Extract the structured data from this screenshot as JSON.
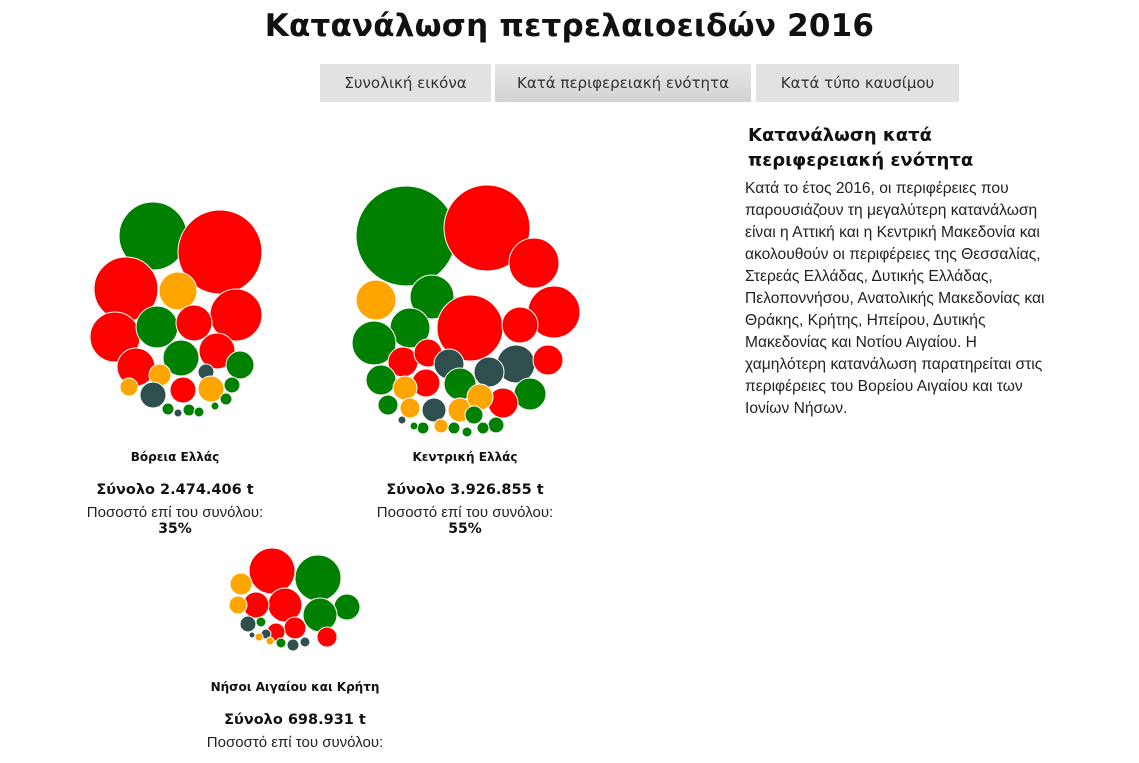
{
  "title": "Κατανάλωση πετρελαιοειδών 2016",
  "tabs": [
    {
      "label": "Συνολική εικόνα",
      "active": false
    },
    {
      "label": "Κατά περιφερειακή ενότητα",
      "active": true
    },
    {
      "label": "Κατά τύπο καυσίμου",
      "active": false
    }
  ],
  "panel": {
    "title": "Κατανάλωση κατά περιφερειακή ενότητα",
    "text": "Κατά το έτος 2016, οι περιφέρειες που παρουσιάζουν τη μεγαλύτερη κατανάλωση είναι η Αττική και η Κεντρική Μακεδονία και ακολουθούν οι περιφέρειες της Θεσσαλίας, Στερεάς Ελλάδας, Δυτικής Ελλάδας, Πελοποννήσου, Ανατολικής Μακεδονίας και Θράκης, Κρήτης, Ηπείρου, Δυτικής Μακεδονίας και Νοτίου Αιγαίου. Η χαμηλότερη κατανάλωση παρατηρείται στις περιφέρειες του Βορείου Αιγαίου και των Ιονίων Νήσων."
  },
  "colors": {
    "red": "#ff0000",
    "green": "#008000",
    "orange": "#ffa500",
    "slate": "#2f4f4f"
  },
  "chart_data": {
    "type": "bubble-cluster",
    "groups": [
      {
        "name": "Βόρεια Ελλάς",
        "total_label": "Σύνολο 2.474.406 t",
        "share_label": "Ποσοστό επί του συνόλου:",
        "share_value": "35%"
      },
      {
        "name": "Κεντρική Ελλάς",
        "total_label": "Σύνολο 3.926.855 t",
        "share_label": "Ποσοστό επί του συνόλου:",
        "share_value": "55%"
      },
      {
        "name": "Νήσοι Αιγαίου και Κρήτη",
        "total_label": "Σύνολο 698.931 t",
        "share_label": "Ποσοστό επί του συνόλου:",
        "share_value": ""
      }
    ]
  }
}
